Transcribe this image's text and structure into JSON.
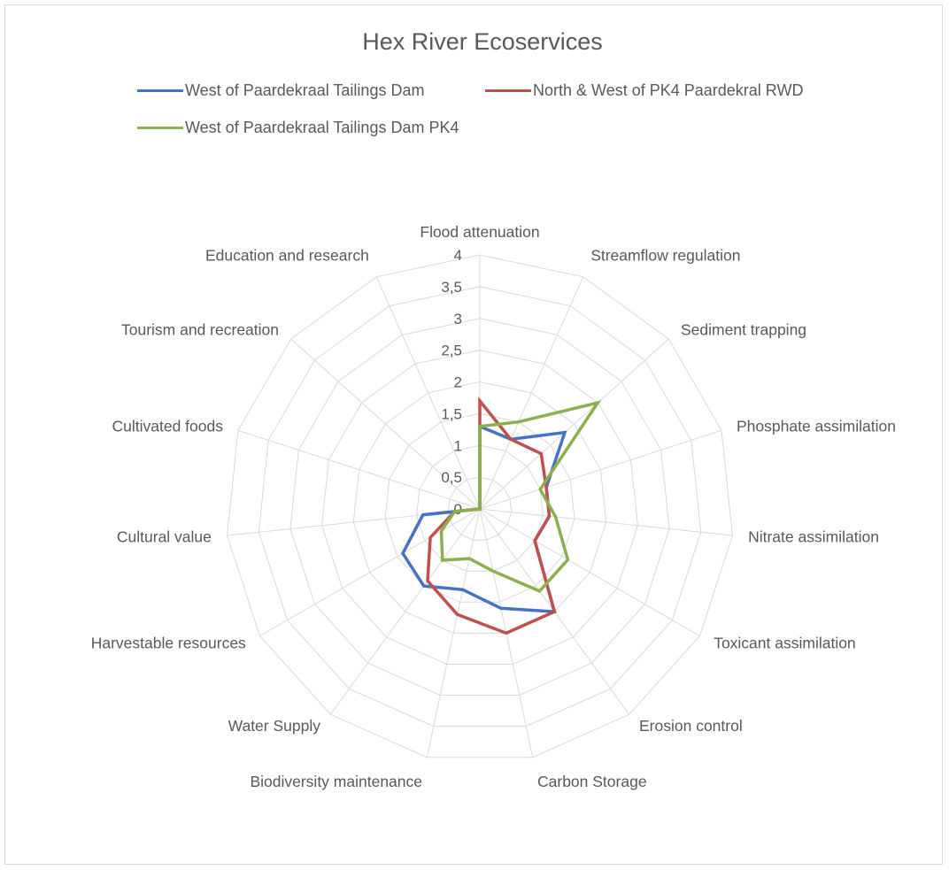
{
  "chart_data": {
    "type": "radar",
    "title": "Hex River Ecoservices",
    "categories": [
      "Flood attenuation",
      "Streamflow regulation",
      "Sediment trapping",
      "Phosphate assimilation",
      "Nitrate assimilation",
      "Toxicant assimilation",
      "Erosion control",
      "Carbon Storage",
      "Biodiversity maintenance",
      "Water Supply",
      "Harvestable resources",
      "Cultural value",
      "Cultivated foods",
      "Tourism and recreation",
      "Education and research"
    ],
    "rlim": [
      0,
      4
    ],
    "ticks": [
      "0",
      "0,5",
      "1",
      "1,5",
      "2",
      "2,5",
      "3",
      "3,5",
      "4"
    ],
    "legend_position": "top",
    "series": [
      {
        "name": "West of Paardekraal Tailings Dam",
        "color": "#4472c4",
        "values": [
          1.3,
          1.2,
          1.8,
          1.1,
          1.1,
          1.0,
          2.0,
          1.6,
          1.3,
          1.5,
          1.4,
          0.9,
          0,
          0,
          0
        ]
      },
      {
        "name": "North & West of PK4 Paardekral RWD",
        "color": "#c0504d",
        "values": [
          1.7,
          1.2,
          1.3,
          1.1,
          1.1,
          1.0,
          2.0,
          2.0,
          1.7,
          1.4,
          0.9,
          0.4,
          0,
          0,
          0
        ]
      },
      {
        "name": "West of Paardekraal Tailings Dam PK4",
        "color": "#8cb04d",
        "values": [
          1.3,
          1.5,
          2.5,
          1.0,
          1.2,
          1.6,
          1.6,
          1.0,
          0.8,
          1.0,
          0.7,
          0.4,
          0,
          0,
          0
        ]
      }
    ]
  }
}
